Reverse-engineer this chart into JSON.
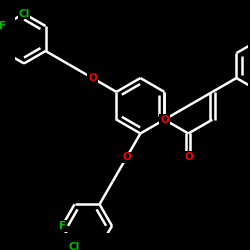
{
  "bg_color": "#000000",
  "bond_color": "#ffffff",
  "O_color": "#ff0000",
  "Cl_color": "#00bb00",
  "F_color": "#00bb00",
  "bond_width": 1.8,
  "figsize": [
    2.5,
    2.5
  ],
  "dpi": 100,
  "xlim": [
    -1.5,
    1.7
  ],
  "ylim": [
    -1.7,
    1.5
  ]
}
